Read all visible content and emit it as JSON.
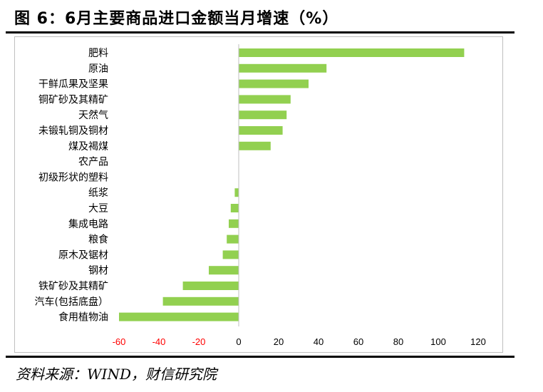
{
  "header": {
    "title": "图 6：6月主要商品进口金额当月增速（%）"
  },
  "footer": {
    "source": "资料来源：WIND，财信研究院"
  },
  "colors": {
    "bar": "#92D050",
    "negative_tick": "#FF0000",
    "positive_tick": "#000000",
    "axis": "#BFBFBF"
  },
  "chart_data": {
    "type": "bar",
    "orientation": "horizontal",
    "title": "6月主要商品进口金额当月增速（%）",
    "xlabel": "",
    "ylabel": "",
    "xlim": [
      -60,
      120
    ],
    "xticks": [
      -60,
      -40,
      -20,
      0,
      20,
      40,
      60,
      80,
      100,
      120
    ],
    "xtick_labels": [
      "-60",
      "-40",
      "-20",
      "0",
      "20",
      "40",
      "60",
      "80",
      "100",
      "120"
    ],
    "categories": [
      "肥料",
      "原油",
      "干鲜瓜果及坚果",
      "铜矿砂及其精矿",
      "天然气",
      "未锻轧铜及铜材",
      "煤及褐煤",
      "农产品",
      "初级形状的塑料",
      "纸浆",
      "大豆",
      "集成电路",
      "粮食",
      "原木及锯材",
      "钢材",
      "铁矿砂及其精矿",
      "汽车(包括底盘）",
      "食用植物油"
    ],
    "values": [
      113,
      44,
      35,
      26,
      24,
      22,
      16,
      0,
      0,
      -2,
      -4,
      -5,
      -6,
      -8,
      -15,
      -28,
      -38,
      -60
    ],
    "grid": false,
    "legend": "none"
  }
}
